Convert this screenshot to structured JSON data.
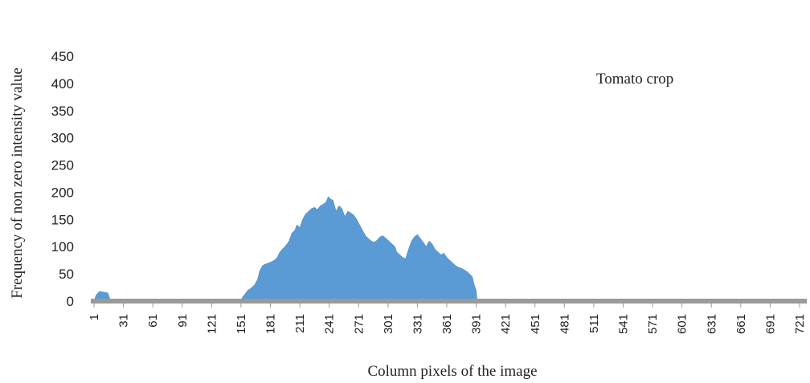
{
  "chart_data": {
    "type": "area",
    "xlabel": "Column pixels of the image",
    "ylabel": "Frequency of non zero intensity value",
    "annotation": "Tomato crop",
    "color": "#5b9bd5",
    "xlim": [
      1,
      721
    ],
    "ylim": [
      0,
      450
    ],
    "y_ticks": [
      0,
      50,
      100,
      150,
      200,
      250,
      300,
      350,
      400,
      450
    ],
    "x_tick_labels": [
      "1",
      "31",
      "61",
      "91",
      "121",
      "151",
      "181",
      "211",
      "241",
      "271",
      "301",
      "331",
      "361",
      "391",
      "421",
      "451",
      "481",
      "511",
      "541",
      "571",
      "601",
      "631",
      "661",
      "691",
      "721"
    ],
    "grid": false,
    "legend": "none",
    "series": [
      {
        "x": [
          1,
          3,
          5,
          7,
          9,
          12,
          15,
          17,
          19,
          150,
          153,
          156,
          158,
          160,
          162,
          165,
          168,
          170,
          173,
          176,
          179,
          182,
          185,
          188,
          190,
          193,
          196,
          200,
          203,
          206,
          208,
          211,
          214,
          217,
          220,
          223,
          226,
          229,
          232,
          235,
          238,
          240,
          242,
          245,
          248,
          251,
          254,
          257,
          260,
          263,
          266,
          269,
          272,
          275,
          278,
          281,
          284,
          287,
          290,
          293,
          296,
          299,
          302,
          305,
          308,
          310,
          313,
          316,
          319,
          322,
          325,
          328,
          331,
          334,
          337,
          340,
          343,
          346,
          349,
          352,
          355,
          358,
          361,
          364,
          367,
          370,
          373,
          376,
          378,
          381,
          384,
          387,
          389,
          391,
          392,
          721
        ],
        "y": [
          0,
          10,
          15,
          18,
          17,
          16,
          15,
          5,
          0,
          0,
          8,
          15,
          20,
          22,
          25,
          30,
          40,
          55,
          65,
          68,
          70,
          72,
          75,
          80,
          88,
          95,
          100,
          110,
          125,
          130,
          140,
          135,
          150,
          160,
          165,
          170,
          172,
          168,
          175,
          178,
          182,
          192,
          188,
          185,
          165,
          175,
          170,
          155,
          165,
          162,
          158,
          150,
          140,
          130,
          120,
          115,
          110,
          108,
          112,
          118,
          120,
          115,
          110,
          105,
          100,
          90,
          85,
          80,
          78,
          95,
          110,
          118,
          122,
          115,
          108,
          100,
          110,
          105,
          95,
          90,
          85,
          88,
          80,
          75,
          70,
          65,
          62,
          60,
          58,
          55,
          50,
          45,
          30,
          20,
          0,
          0
        ]
      }
    ]
  }
}
